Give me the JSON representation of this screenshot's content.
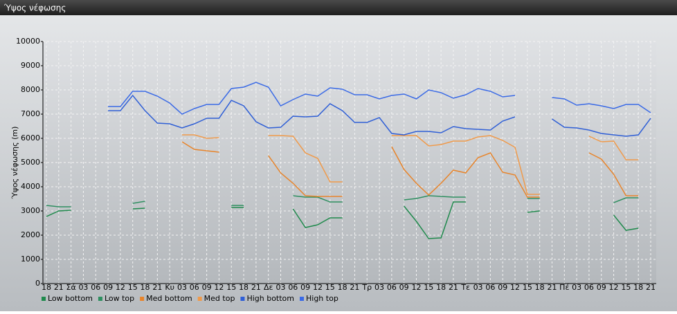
{
  "window": {
    "title": "Ύψος νέφωσης"
  },
  "chart_data": {
    "type": "line",
    "y_label": "Ύψος νέφωσης (m)",
    "categories": [
      "18",
      "21",
      "Σά",
      "03",
      "06",
      "09",
      "12",
      "15",
      "18",
      "21",
      "Κυ",
      "03",
      "06",
      "09",
      "12",
      "15",
      "18",
      "21",
      "Δε",
      "03",
      "06",
      "09",
      "12",
      "15",
      "18",
      "21",
      "Τρ",
      "03",
      "06",
      "09",
      "12",
      "15",
      "18",
      "21",
      "Τε",
      "03",
      "06",
      "09",
      "12",
      "15",
      "18",
      "21",
      "Πέ",
      "03",
      "06",
      "09",
      "12",
      "15",
      "18",
      "21"
    ],
    "ylim": [
      0,
      10000
    ],
    "yticks": [
      0,
      1000,
      2000,
      3000,
      4000,
      5000,
      6000,
      7000,
      8000,
      9000,
      10000
    ],
    "grid": true,
    "legend": "bottom-left",
    "series": [
      {
        "name": "Low bottom",
        "color": "#1f8a4c",
        "values": [
          2771,
          3000,
          3029,
          null,
          null,
          null,
          null,
          3086,
          3114,
          null,
          null,
          null,
          null,
          null,
          null,
          3143,
          3143,
          null,
          null,
          null,
          3086,
          2314,
          2429,
          2714,
          2714,
          null,
          null,
          null,
          null,
          3200,
          2571,
          1857,
          1886,
          3371,
          3371,
          null,
          null,
          null,
          null,
          2943,
          3000,
          null,
          null,
          null,
          null,
          null,
          2829,
          2200,
          2286,
          null
        ]
      },
      {
        "name": "Low top",
        "color": "#2e8f60",
        "values": [
          3229,
          3171,
          3171,
          null,
          null,
          null,
          null,
          3314,
          3400,
          null,
          null,
          null,
          null,
          null,
          null,
          3229,
          3229,
          null,
          null,
          null,
          3629,
          3571,
          3571,
          3371,
          3371,
          null,
          null,
          null,
          null,
          3457,
          3514,
          3629,
          3600,
          3571,
          3571,
          null,
          null,
          null,
          null,
          3514,
          3514,
          null,
          null,
          null,
          null,
          null,
          3343,
          3543,
          3543,
          null
        ]
      },
      {
        "name": "Med bottom",
        "color": "#e8842a",
        "values": [
          null,
          null,
          null,
          null,
          null,
          null,
          null,
          null,
          null,
          null,
          null,
          5857,
          5543,
          5486,
          5429,
          null,
          null,
          null,
          5286,
          4571,
          4143,
          3629,
          3600,
          3600,
          3600,
          null,
          null,
          null,
          5657,
          4714,
          4143,
          3657,
          4143,
          4686,
          4571,
          5200,
          5400,
          4600,
          4486,
          3571,
          3571,
          null,
          null,
          null,
          5400,
          5143,
          4514,
          3629,
          3629,
          null
        ]
      },
      {
        "name": "Med top",
        "color": "#f09a4a",
        "values": [
          null,
          null,
          null,
          null,
          null,
          null,
          null,
          null,
          null,
          null,
          null,
          6143,
          6143,
          6000,
          6029,
          null,
          null,
          null,
          6114,
          6114,
          6086,
          5400,
          5171,
          4200,
          4200,
          null,
          null,
          null,
          6114,
          6114,
          6114,
          5686,
          5743,
          5886,
          5886,
          6057,
          6114,
          5914,
          5629,
          3686,
          3686,
          null,
          null,
          null,
          6086,
          5857,
          5886,
          5114,
          5114,
          null
        ]
      },
      {
        "name": "High bottom",
        "color": "#2f5fd6",
        "values": [
          null,
          null,
          null,
          null,
          null,
          7143,
          7143,
          7771,
          7143,
          6629,
          6600,
          6429,
          6600,
          6829,
          6829,
          7571,
          7343,
          6686,
          6429,
          6457,
          6914,
          6886,
          6914,
          7429,
          7143,
          6657,
          6657,
          6857,
          6200,
          6143,
          6286,
          6286,
          6229,
          6486,
          6400,
          6371,
          6343,
          6714,
          6886,
          null,
          null,
          6800,
          6457,
          6429,
          6343,
          6200,
          6143,
          6086,
          6143,
          6829
        ]
      },
      {
        "name": "High top",
        "color": "#3a6ae6",
        "values": [
          null,
          null,
          null,
          null,
          null,
          7314,
          7314,
          7943,
          7943,
          7743,
          7457,
          7000,
          7229,
          7400,
          7400,
          8057,
          8114,
          8314,
          8114,
          7343,
          7600,
          7829,
          7743,
          8086,
          8029,
          7800,
          7800,
          7629,
          7771,
          7829,
          7629,
          8000,
          7886,
          7657,
          7800,
          8057,
          7943,
          7714,
          7771,
          null,
          null,
          7686,
          7629,
          7371,
          7429,
          7343,
          7229,
          7400,
          7400,
          7057
        ]
      }
    ]
  }
}
